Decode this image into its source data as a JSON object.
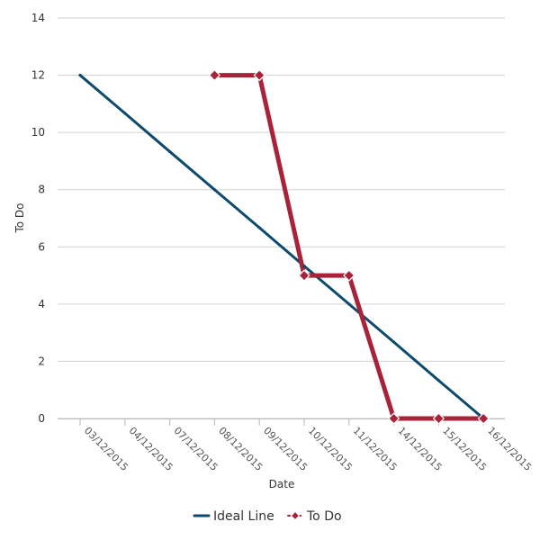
{
  "chart_data": {
    "type": "line",
    "xlabel": "Date",
    "ylabel": "To Do",
    "ylim": [
      0,
      14
    ],
    "yticks": [
      0,
      2,
      4,
      6,
      8,
      10,
      12,
      14
    ],
    "categories": [
      "03/12/2015",
      "04/12/2015",
      "07/12/2015",
      "08/12/2015",
      "09/12/2015",
      "10/12/2015",
      "11/12/2015",
      "14/12/2015",
      "15/12/2015",
      "16/12/2015"
    ],
    "grid": true,
    "legend_position": "bottom",
    "series": [
      {
        "name": "Ideal Line",
        "color": "#0d4a6b",
        "marker": "none",
        "values": [
          12,
          10.67,
          9.33,
          8,
          6.67,
          5.33,
          4,
          2.67,
          1.33,
          0
        ]
      },
      {
        "name": "To Do",
        "color": "#a8233a",
        "marker": "diamond",
        "values": [
          null,
          null,
          null,
          12,
          12,
          5,
          5,
          0,
          0,
          0
        ]
      }
    ]
  }
}
